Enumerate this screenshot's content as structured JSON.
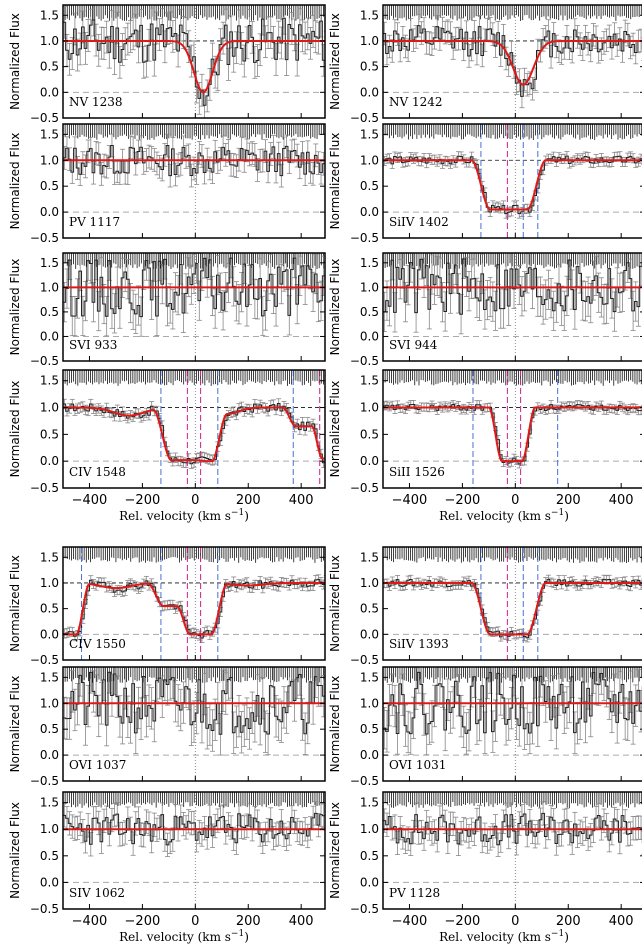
{
  "figure": {
    "ylabel": "Normalized Flux",
    "xlabel_main": "Rel. velocity  (km s",
    "xlabel_sup": "−1",
    "xlabel_close": ")"
  },
  "chart_data": [
    {
      "type": "line",
      "panel_label": "NV 1238",
      "fit": "line",
      "fit_center": 30,
      "fit_depth": 1.0,
      "fit_width": 50,
      "obs_seed": 11,
      "noise": 0.45,
      "xlim": [
        -500,
        490
      ],
      "ylim": [
        -0.5,
        1.7
      ],
      "yticks": [
        -0.5,
        0.0,
        0.5,
        1.0,
        1.5
      ],
      "xticks": [
        -400,
        -200,
        0,
        200,
        400
      ],
      "markers": []
    },
    {
      "type": "line",
      "panel_label": "NV 1242",
      "fit": "line",
      "fit_center": 30,
      "fit_depth": 0.85,
      "fit_width": 55,
      "obs_seed": 12,
      "noise": 0.3,
      "xlim": [
        -500,
        490
      ],
      "ylim": [
        -0.5,
        1.7
      ],
      "yticks": [
        -0.5,
        0.0,
        0.5,
        1.0,
        1.5
      ],
      "xticks": [
        -400,
        -200,
        0,
        200,
        400
      ],
      "markers": []
    },
    {
      "type": "line",
      "panel_label": "PV 1117",
      "fit": "flat",
      "obs_seed": 13,
      "noise": 0.3,
      "xlim": [
        -500,
        490
      ],
      "ylim": [
        -0.5,
        1.7
      ],
      "yticks": [
        -0.5,
        0.0,
        0.5,
        1.0,
        1.5
      ],
      "xticks": [
        -400,
        -200,
        0,
        200,
        400
      ],
      "markers": []
    },
    {
      "type": "line",
      "panel_label": "SiIV 1402",
      "fit": "trough",
      "trough_lo": -130,
      "trough_hi": 80,
      "trough_min": 0.05,
      "trough_edge": 35,
      "obs_seed": 14,
      "noise": 0.08,
      "xlim": [
        -500,
        490
      ],
      "ylim": [
        -0.5,
        1.7
      ],
      "yticks": [
        -0.5,
        0.0,
        0.5,
        1.0,
        1.5
      ],
      "xticks": [
        -400,
        -200,
        0,
        200,
        400
      ],
      "markers": [
        {
          "v": -130,
          "c": "#4a6fd6"
        },
        {
          "v": -30,
          "c": "#d0208a"
        },
        {
          "v": 30,
          "c": "#4a6fd6"
        },
        {
          "v": 85,
          "c": "#4a6fd6"
        }
      ]
    },
    {
      "type": "line",
      "panel_label": "SVI 933",
      "fit": "flat",
      "obs_seed": 15,
      "noise": 0.6,
      "xlim": [
        -500,
        490
      ],
      "ylim": [
        -0.5,
        1.7
      ],
      "yticks": [
        -0.5,
        0.0,
        0.5,
        1.0,
        1.5
      ],
      "xticks": [
        -400,
        -200,
        0,
        200,
        400
      ],
      "markers": []
    },
    {
      "type": "line",
      "panel_label": "SVI 944",
      "fit": "flat",
      "obs_seed": 16,
      "noise": 0.6,
      "xlim": [
        -500,
        490
      ],
      "ylim": [
        -0.5,
        1.7
      ],
      "yticks": [
        -0.5,
        0.0,
        0.5,
        1.0,
        1.5
      ],
      "xticks": [
        -400,
        -200,
        0,
        200,
        400
      ],
      "markers": []
    },
    {
      "type": "line",
      "panel_label": "CIV 1548",
      "fit": "civ1548",
      "obs_seed": 17,
      "noise": 0.08,
      "xlim": [
        -500,
        490
      ],
      "ylim": [
        -0.5,
        1.7
      ],
      "yticks": [
        -0.5,
        0.0,
        0.5,
        1.0,
        1.5
      ],
      "xticks": [
        -400,
        -200,
        0,
        200,
        400
      ],
      "markers": [
        {
          "v": -130,
          "c": "#4a6fd6"
        },
        {
          "v": -30,
          "c": "#d0208a"
        },
        {
          "v": 20,
          "c": "#d0208a"
        },
        {
          "v": 85,
          "c": "#4a6fd6"
        },
        {
          "v": 370,
          "c": "#4a6fd6"
        },
        {
          "v": 470,
          "c": "#d0208a"
        }
      ]
    },
    {
      "type": "line",
      "panel_label": "SiII 1526",
      "fit": "trough",
      "trough_lo": -75,
      "trough_hi": 50,
      "trough_min": 0.0,
      "trough_edge": 25,
      "obs_seed": 18,
      "noise": 0.06,
      "xlim": [
        -500,
        490
      ],
      "ylim": [
        -0.5,
        1.7
      ],
      "yticks": [
        -0.5,
        0.0,
        0.5,
        1.0,
        1.5
      ],
      "xticks": [
        -400,
        -200,
        0,
        200,
        400
      ],
      "markers": [
        {
          "v": -160,
          "c": "#4a6fd6"
        },
        {
          "v": -30,
          "c": "#d0208a"
        },
        {
          "v": 20,
          "c": "#d0208a"
        },
        {
          "v": 160,
          "c": "#4a6fd6"
        }
      ]
    },
    {
      "type": "line",
      "panel_label": "CIV 1550",
      "fit": "civ1550",
      "obs_seed": 19,
      "noise": 0.08,
      "xlim": [
        -500,
        490
      ],
      "ylim": [
        -0.5,
        1.7
      ],
      "yticks": [
        -0.5,
        0.0,
        0.5,
        1.0,
        1.5
      ],
      "xticks": [
        -400,
        -200,
        0,
        200,
        400
      ],
      "markers": [
        {
          "v": -430,
          "c": "#4a6fd6"
        },
        {
          "v": -130,
          "c": "#4a6fd6"
        },
        {
          "v": -30,
          "c": "#d0208a"
        },
        {
          "v": 20,
          "c": "#d0208a"
        },
        {
          "v": 85,
          "c": "#4a6fd6"
        }
      ]
    },
    {
      "type": "line",
      "panel_label": "SiIV 1393",
      "fit": "trough",
      "trough_lo": -130,
      "trough_hi": 80,
      "trough_min": 0.0,
      "trough_edge": 35,
      "obs_seed": 20,
      "noise": 0.07,
      "xlim": [
        -500,
        490
      ],
      "ylim": [
        -0.5,
        1.7
      ],
      "yticks": [
        -0.5,
        0.0,
        0.5,
        1.0,
        1.5
      ],
      "xticks": [
        -400,
        -200,
        0,
        200,
        400
      ],
      "markers": [
        {
          "v": -130,
          "c": "#4a6fd6"
        },
        {
          "v": -30,
          "c": "#d0208a"
        },
        {
          "v": 30,
          "c": "#4a6fd6"
        },
        {
          "v": 85,
          "c": "#4a6fd6"
        }
      ]
    },
    {
      "type": "line",
      "panel_label": "OVI 1037",
      "fit": "flat",
      "obs_seed": 21,
      "noise": 0.6,
      "xlim": [
        -500,
        490
      ],
      "ylim": [
        -0.5,
        1.7
      ],
      "yticks": [
        -0.5,
        0.0,
        0.5,
        1.0,
        1.5
      ],
      "xticks": [
        -400,
        -200,
        0,
        200,
        400
      ],
      "markers": []
    },
    {
      "type": "line",
      "panel_label": "OVI 1031",
      "fit": "flat",
      "obs_seed": 22,
      "noise": 0.6,
      "xlim": [
        -500,
        490
      ],
      "ylim": [
        -0.5,
        1.7
      ],
      "yticks": [
        -0.5,
        0.0,
        0.5,
        1.0,
        1.5
      ],
      "xticks": [
        -400,
        -200,
        0,
        200,
        400
      ],
      "markers": []
    },
    {
      "type": "line",
      "panel_label": "SIV 1062",
      "fit": "flat",
      "obs_seed": 23,
      "noise": 0.3,
      "xlim": [
        -500,
        490
      ],
      "ylim": [
        -0.5,
        1.7
      ],
      "yticks": [
        -0.5,
        0.0,
        0.5,
        1.0,
        1.5
      ],
      "xticks": [
        -400,
        -200,
        0,
        200,
        400
      ],
      "markers": []
    },
    {
      "type": "line",
      "panel_label": "PV 1128",
      "fit": "flat",
      "obs_seed": 24,
      "noise": 0.3,
      "xlim": [
        -500,
        490
      ],
      "ylim": [
        -0.5,
        1.7
      ],
      "yticks": [
        -0.5,
        0.0,
        0.5,
        1.0,
        1.5
      ],
      "xticks": [
        -400,
        -200,
        0,
        200,
        400
      ],
      "markers": []
    }
  ]
}
